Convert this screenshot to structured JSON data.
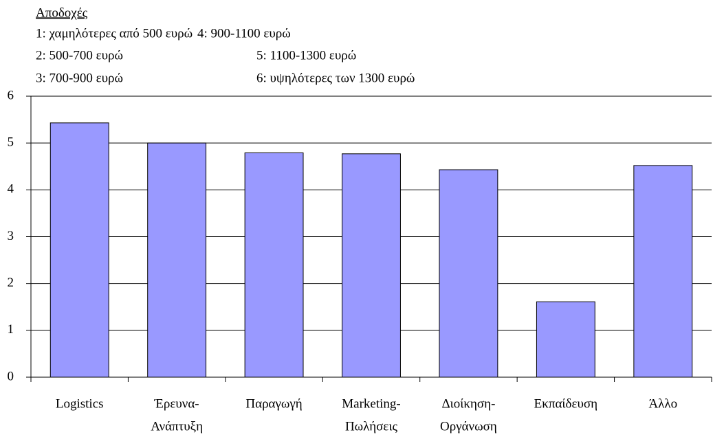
{
  "chart_data": {
    "type": "bar",
    "title": "Αποδοχές",
    "annotations": [
      "1: χαμηλότερες από 500 ευρώ",
      "4: 900-1100 ευρώ",
      "2: 500-700 ευρώ",
      "5: 1100-1300 ευρώ",
      "3: 700-900 ευρώ",
      "6: υψηλότερες των 1300 ευρώ"
    ],
    "categories": [
      [
        "Logistics"
      ],
      [
        "Έρευνα-",
        "Ανάπτυξη"
      ],
      [
        "Παραγωγή"
      ],
      [
        "Marketing-",
        "Πωλήσεις"
      ],
      [
        "Διοίκηση-",
        "Οργάνωση"
      ],
      [
        "Εκπαίδευση"
      ],
      [
        "Άλλο"
      ]
    ],
    "values": [
      5.43,
      5.0,
      4.79,
      4.77,
      4.43,
      1.61,
      4.52
    ],
    "color": "#9999ff",
    "ylim": [
      0,
      6
    ],
    "yticks": [
      0,
      1,
      2,
      3,
      4,
      5,
      6
    ],
    "grid": true
  }
}
